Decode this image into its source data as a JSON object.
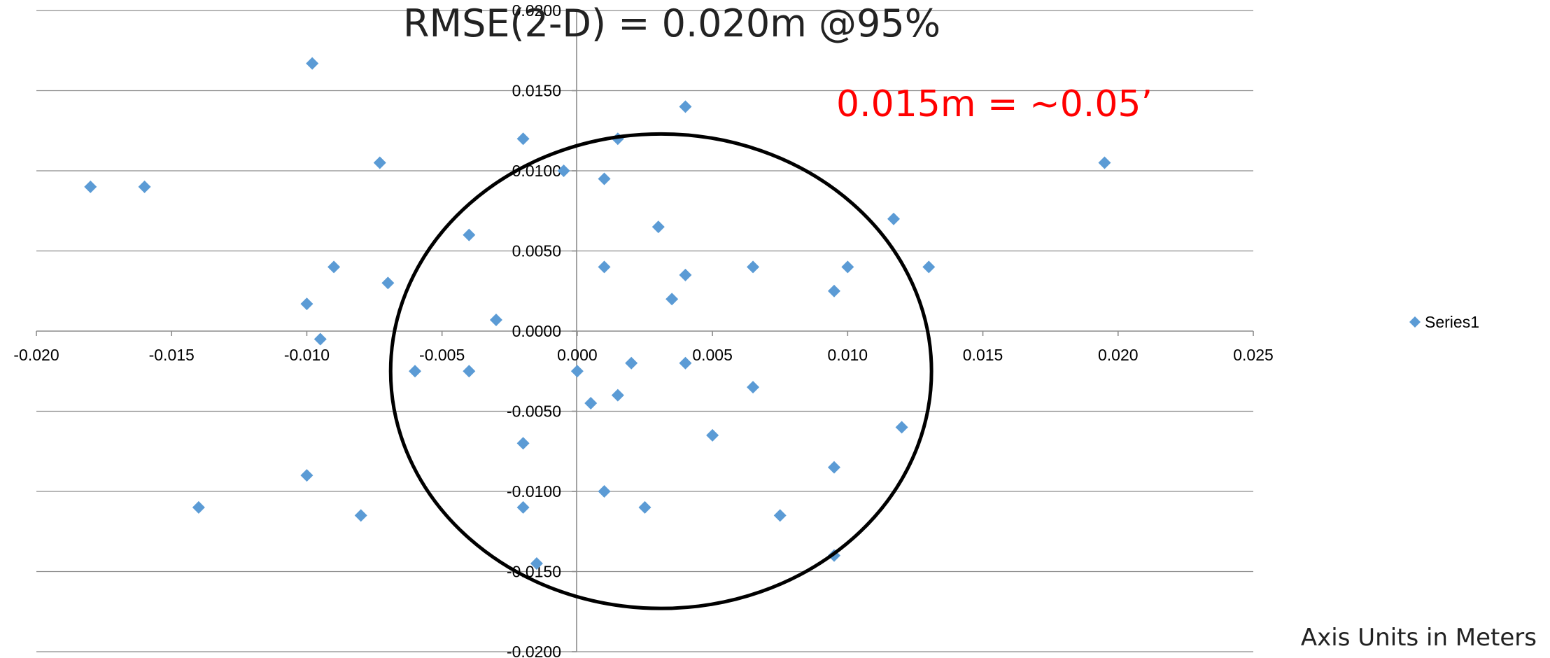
{
  "chart_data": {
    "type": "scatter",
    "title": "RMSE(2-D) = 0.020m @95%",
    "annotation": "0.015m = ~0.05’",
    "annotation_color": "#ff0000",
    "units_note": "Axis Units in Meters",
    "xlim": [
      -0.02,
      0.025
    ],
    "ylim": [
      -0.02,
      0.02
    ],
    "x_ticks": [
      "-0.020",
      "-0.015",
      "-0.010",
      "-0.005",
      "0.000",
      "0.005",
      "0.010",
      "0.015",
      "0.020",
      "0.025"
    ],
    "y_ticks": [
      "0.0200",
      "0.0150",
      "0.0100",
      "0.0050",
      "0.0000",
      "-0.0050",
      "-0.0100",
      "-0.0150",
      "-0.0200"
    ],
    "grid": "horizontal",
    "legend_position": "right",
    "marker_color": "#5b9bd5",
    "series": [
      {
        "name": "Series1",
        "points": [
          [
            -0.0098,
            0.0167
          ],
          [
            -0.0073,
            0.0105
          ],
          [
            -0.018,
            0.009
          ],
          [
            -0.016,
            0.009
          ],
          [
            -0.009,
            0.004
          ],
          [
            -0.007,
            0.003
          ],
          [
            -0.01,
            0.0017
          ],
          [
            -0.0095,
            -0.0005
          ],
          [
            -0.004,
            0.006
          ],
          [
            -0.003,
            0.0007
          ],
          [
            -0.006,
            -0.0025
          ],
          [
            -0.004,
            -0.0025
          ],
          [
            -0.002,
            0.012
          ],
          [
            -0.0005,
            0.01
          ],
          [
            0.0015,
            0.012
          ],
          [
            0.001,
            0.0095
          ],
          [
            0.004,
            0.014
          ],
          [
            0.003,
            0.0065
          ],
          [
            0.001,
            0.004
          ],
          [
            0.004,
            0.0035
          ],
          [
            0.0035,
            0.002
          ],
          [
            0.0065,
            0.004
          ],
          [
            0.0095,
            0.0025
          ],
          [
            0.01,
            0.004
          ],
          [
            0.0117,
            0.007
          ],
          [
            0.013,
            0.004
          ],
          [
            0.0195,
            0.0105
          ],
          [
            0.0,
            -0.0025
          ],
          [
            0.002,
            -0.002
          ],
          [
            0.004,
            -0.002
          ],
          [
            0.0015,
            -0.004
          ],
          [
            0.0005,
            -0.0045
          ],
          [
            0.0065,
            -0.0035
          ],
          [
            0.005,
            -0.0065
          ],
          [
            0.012,
            -0.006
          ],
          [
            -0.002,
            -0.007
          ],
          [
            -0.01,
            -0.009
          ],
          [
            -0.014,
            -0.011
          ],
          [
            -0.008,
            -0.0115
          ],
          [
            -0.002,
            -0.011
          ],
          [
            0.001,
            -0.01
          ],
          [
            0.0025,
            -0.011
          ],
          [
            0.0075,
            -0.0115
          ],
          [
            0.0095,
            -0.0085
          ],
          [
            0.0095,
            -0.014
          ],
          [
            -0.0015,
            -0.0145
          ]
        ]
      }
    ],
    "ellipse": {
      "cx": 0.0031,
      "cy": -0.0025,
      "rx": 0.01,
      "ry": 0.0148
    }
  }
}
